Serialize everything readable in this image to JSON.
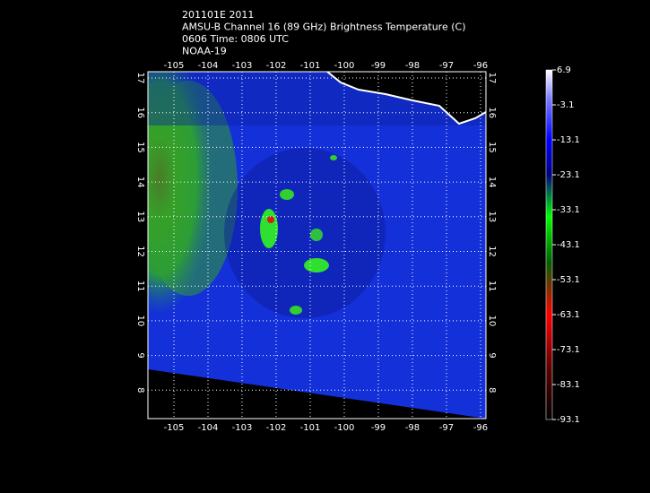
{
  "header": {
    "lines": [
      "201101E 2011",
      "AMSU-B Channel 16 (89 GHz) Brightness Temperature (C)",
      "0606 Time: 0806 UTC",
      "NOAA-19"
    ]
  },
  "map": {
    "lon_ticks": [
      -105,
      -104,
      -103,
      -102,
      -101,
      -100,
      -99,
      -98,
      -97,
      -96
    ],
    "lat_ticks": [
      17,
      16,
      15,
      14,
      13,
      12,
      11,
      10,
      9,
      8
    ]
  },
  "colorbar": {
    "labels": [
      6.9,
      -3.1,
      -13.1,
      -23.1,
      -33.1,
      -43.1,
      -53.1,
      -63.1,
      -73.1,
      -83.1,
      -93.1
    ]
  }
}
